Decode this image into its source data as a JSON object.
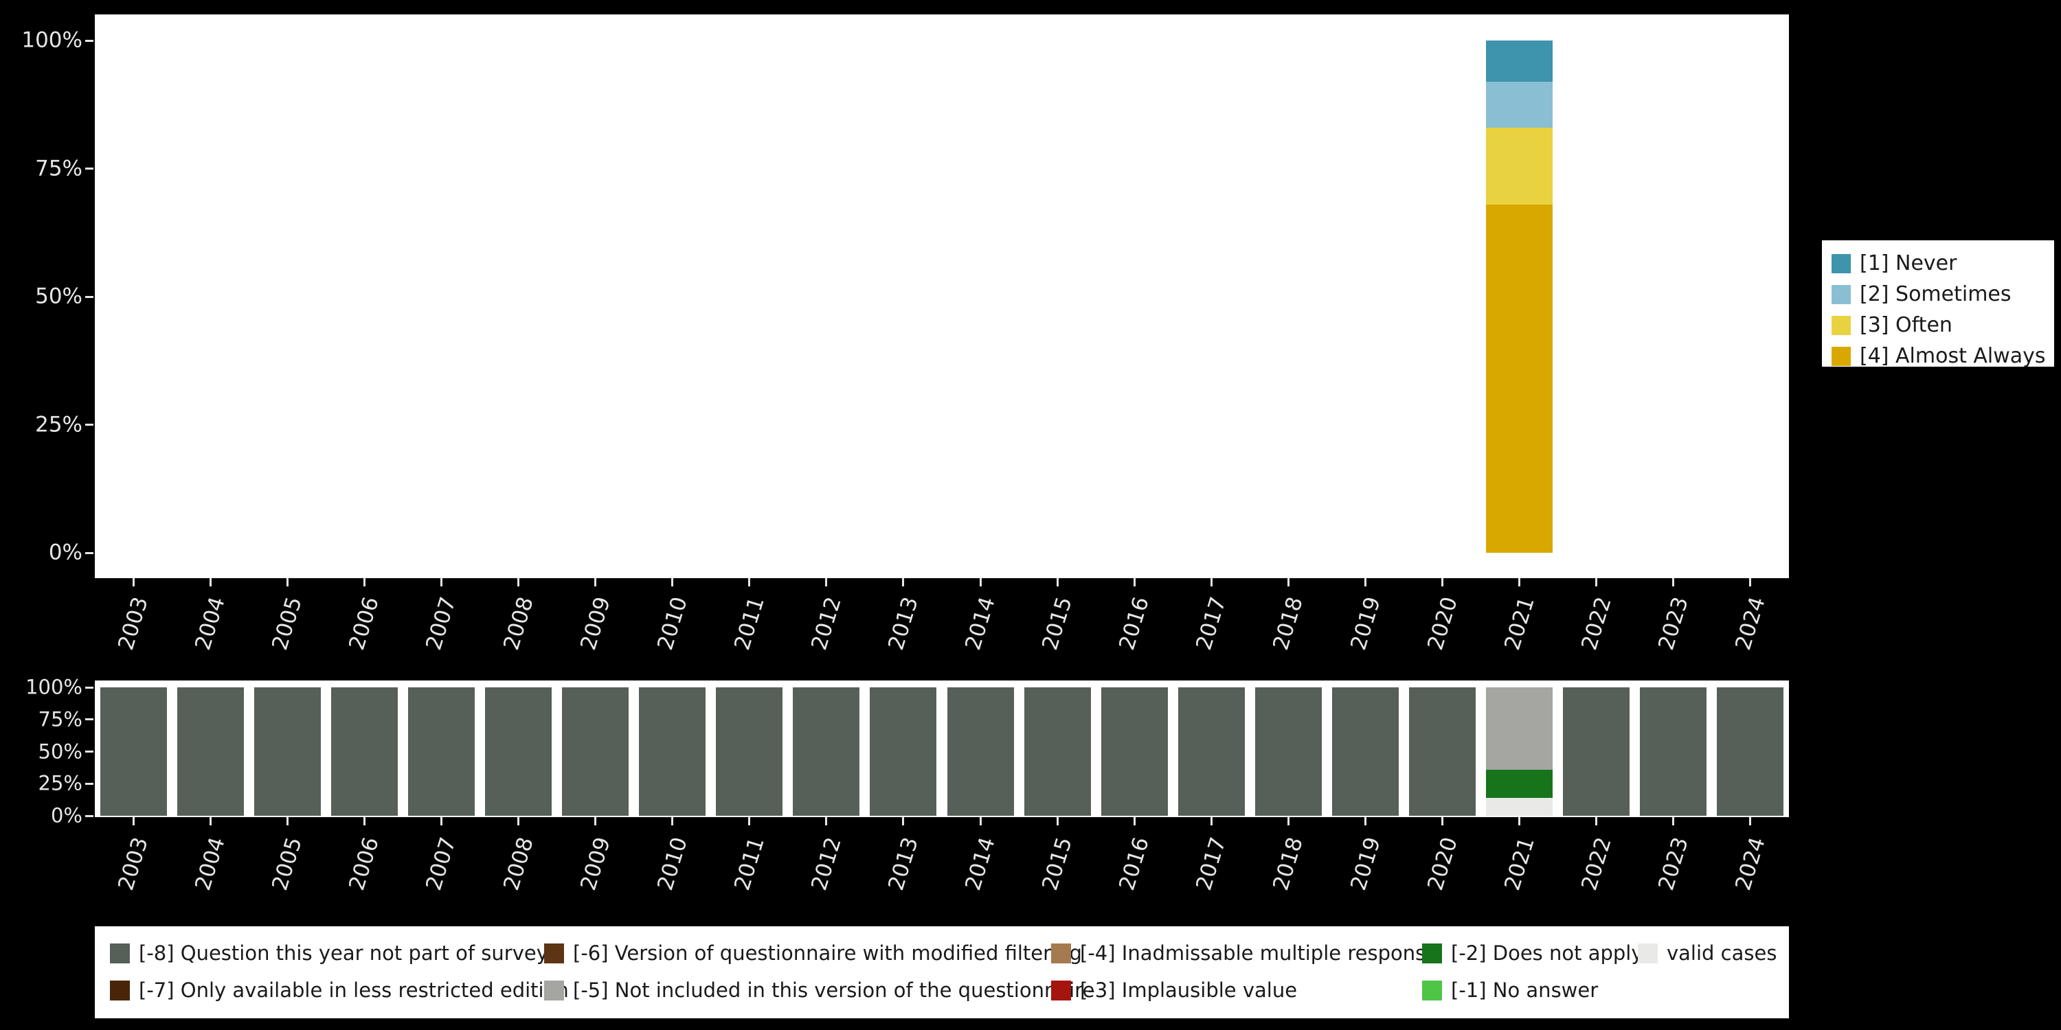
{
  "axes": {
    "y_tick_labels": [
      "0%",
      "25%",
      "50%",
      "75%",
      "100%"
    ],
    "years": [
      "2003",
      "2004",
      "2005",
      "2006",
      "2007",
      "2008",
      "2009",
      "2010",
      "2011",
      "2012",
      "2013",
      "2014",
      "2015",
      "2016",
      "2017",
      "2018",
      "2019",
      "2020",
      "2021",
      "2022",
      "2023",
      "2024"
    ]
  },
  "chart_data": [
    {
      "type": "bar",
      "stacked": true,
      "stack_order": "bottom-to-top",
      "title": "",
      "xlabel": "",
      "ylabel": "",
      "ylim": [
        0,
        100
      ],
      "y_tick_labels": [
        "0%",
        "25%",
        "50%",
        "75%",
        "100%"
      ],
      "legend_position": "right",
      "categories": [
        "2003",
        "2004",
        "2005",
        "2006",
        "2007",
        "2008",
        "2009",
        "2010",
        "2011",
        "2012",
        "2013",
        "2014",
        "2015",
        "2016",
        "2017",
        "2018",
        "2019",
        "2020",
        "2021",
        "2022",
        "2023",
        "2024"
      ],
      "series": [
        {
          "name": "[4] Almost Always",
          "color": "#d9a800",
          "values": [
            0,
            0,
            0,
            0,
            0,
            0,
            0,
            0,
            0,
            0,
            0,
            0,
            0,
            0,
            0,
            0,
            0,
            0,
            68,
            0,
            0,
            0
          ]
        },
        {
          "name": "[3] Often",
          "color": "#e9d23f",
          "values": [
            0,
            0,
            0,
            0,
            0,
            0,
            0,
            0,
            0,
            0,
            0,
            0,
            0,
            0,
            0,
            0,
            0,
            0,
            15,
            0,
            0,
            0
          ]
        },
        {
          "name": "[2] Sometimes",
          "color": "#8abfd3",
          "values": [
            0,
            0,
            0,
            0,
            0,
            0,
            0,
            0,
            0,
            0,
            0,
            0,
            0,
            0,
            0,
            0,
            0,
            0,
            9,
            0,
            0,
            0
          ]
        },
        {
          "name": "[1] Never",
          "color": "#3e93ad",
          "values": [
            0,
            0,
            0,
            0,
            0,
            0,
            0,
            0,
            0,
            0,
            0,
            0,
            0,
            0,
            0,
            0,
            0,
            0,
            8,
            0,
            0,
            0
          ]
        }
      ]
    },
    {
      "type": "bar",
      "stacked": true,
      "stack_order": "bottom-to-top",
      "title": "",
      "xlabel": "",
      "ylabel": "",
      "ylim": [
        0,
        100
      ],
      "y_tick_labels": [
        "0%",
        "25%",
        "50%",
        "75%",
        "100%"
      ],
      "legend_position": "bottom",
      "categories": [
        "2003",
        "2004",
        "2005",
        "2006",
        "2007",
        "2008",
        "2009",
        "2010",
        "2011",
        "2012",
        "2013",
        "2014",
        "2015",
        "2016",
        "2017",
        "2018",
        "2019",
        "2020",
        "2021",
        "2022",
        "2023",
        "2024"
      ],
      "series": [
        {
          "name": "valid cases",
          "color": "#e9e9e7",
          "values": [
            0,
            0,
            0,
            0,
            0,
            0,
            0,
            0,
            0,
            0,
            0,
            0,
            0,
            0,
            0,
            0,
            0,
            0,
            14,
            0,
            0,
            0
          ]
        },
        {
          "name": "[-2] Does not apply",
          "color": "#17741b",
          "values": [
            0,
            0,
            0,
            0,
            0,
            0,
            0,
            0,
            0,
            0,
            0,
            0,
            0,
            0,
            0,
            0,
            0,
            0,
            22,
            0,
            0,
            0
          ]
        },
        {
          "name": "[-5] Not included in this version of the questionnaire",
          "color": "#a5a5a2",
          "values": [
            0,
            0,
            0,
            0,
            0,
            0,
            0,
            0,
            0,
            0,
            0,
            0,
            0,
            0,
            0,
            0,
            0,
            0,
            64,
            0,
            0,
            0
          ]
        },
        {
          "name": "[-8] Question this year not part of survey",
          "color": "#566058",
          "values": [
            100,
            100,
            100,
            100,
            100,
            100,
            100,
            100,
            100,
            100,
            100,
            100,
            100,
            100,
            100,
            100,
            100,
            100,
            0,
            100,
            100,
            100
          ]
        }
      ]
    }
  ],
  "top_legend": {
    "items": [
      {
        "label": "[1] Never",
        "color": "#3e93ad"
      },
      {
        "label": "[2] Sometimes",
        "color": "#8abfd3"
      },
      {
        "label": "[3] Often",
        "color": "#e9d23f"
      },
      {
        "label": "[4] Almost Always",
        "color": "#d9a800"
      }
    ]
  },
  "footer_legend": {
    "rows": [
      [
        {
          "label": "[-8] Question this year not part of survey",
          "color": "#566058"
        },
        {
          "label": "[-6] Version of questionnaire with modified filtering",
          "color": "#5e3514"
        },
        {
          "label": "[-4] Inadmissable multiple response",
          "color": "#a57a50"
        },
        {
          "label": "[-2] Does not apply",
          "color": "#17741b"
        },
        {
          "label": "valid cases",
          "color": "#e9e9e7"
        }
      ],
      [
        {
          "label": "[-7] Only available in less restricted edition",
          "color": "#4a2408"
        },
        {
          "label": "[-5] Not included in this version of the questionnaire",
          "color": "#a5a5a2"
        },
        {
          "label": "[-3] Implausible value",
          "color": "#a5140d"
        },
        {
          "label": "[-1] No answer",
          "color": "#4fc546"
        }
      ]
    ]
  }
}
